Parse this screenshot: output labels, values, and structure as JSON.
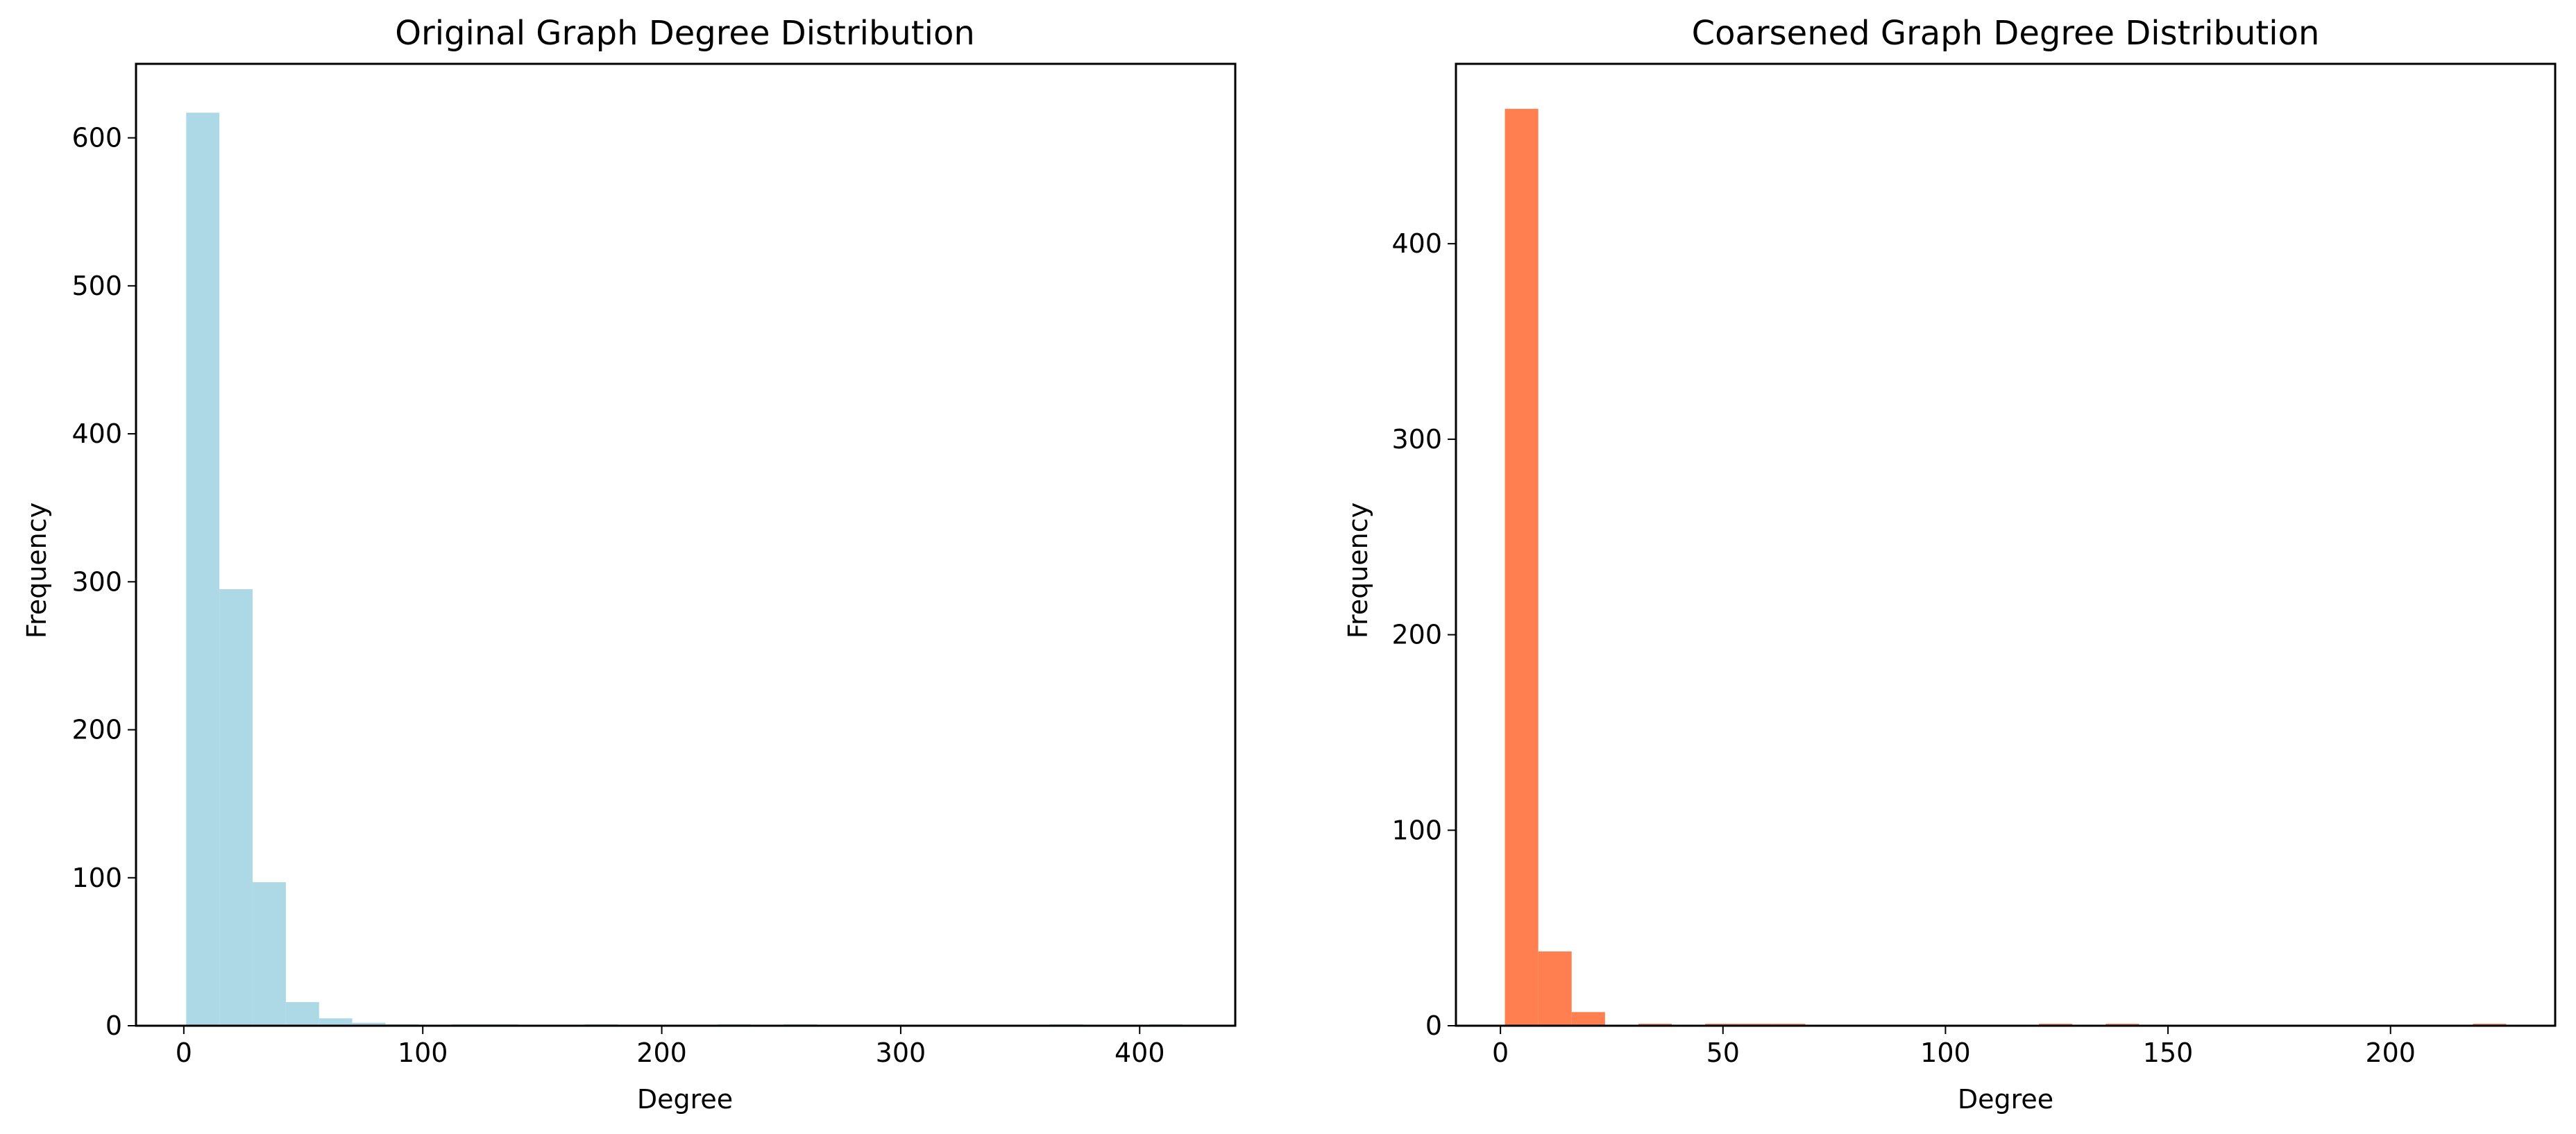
{
  "chart_data": [
    {
      "type": "bar",
      "title": "Original Graph Degree Distribution",
      "xlabel": "Degree",
      "ylabel": "Frequency",
      "color": "#add8e6",
      "xlim": [
        -20,
        440
      ],
      "ylim": [
        0,
        650
      ],
      "xticks": [
        0,
        100,
        200,
        300,
        400
      ],
      "yticks": [
        0,
        100,
        200,
        300,
        400,
        500,
        600
      ],
      "xtick_labels": [
        "0",
        "100",
        "200",
        "300",
        "400"
      ],
      "ytick_labels": [
        "0",
        "100",
        "200",
        "300",
        "400",
        "500",
        "600"
      ],
      "bin_edges": [
        1,
        14.9,
        28.8,
        42.7,
        56.6,
        70.5,
        84.4,
        98.3,
        112.2,
        126.1,
        140,
        153.9,
        167.8,
        181.7,
        195.6,
        209.5,
        223.4,
        237.3,
        251.2,
        265.1,
        279,
        292.9,
        306.8,
        320.7,
        334.6,
        348.5,
        362.4,
        376.3,
        390.2,
        404.1,
        418
      ],
      "values": [
        617,
        295,
        97,
        16,
        5,
        2,
        1,
        0,
        1,
        1,
        0,
        0,
        1,
        0,
        0,
        0,
        1,
        0,
        1,
        0,
        0,
        0,
        0,
        0,
        0,
        0,
        1,
        0,
        0,
        1
      ]
    },
    {
      "type": "bar",
      "title": "Coarsened Graph Degree Distribution",
      "xlabel": "Degree",
      "ylabel": "Frequency",
      "color": "#ff7f50",
      "xlim": [
        -10,
        237
      ],
      "ylim": [
        0,
        492
      ],
      "xticks": [
        0,
        50,
        100,
        150,
        200
      ],
      "yticks": [
        0,
        100,
        200,
        300,
        400
      ],
      "xtick_labels": [
        "0",
        "50",
        "100",
        "150",
        "200"
      ],
      "ytick_labels": [
        "0",
        "100",
        "200",
        "300",
        "400"
      ],
      "bin_edges": [
        1,
        8.5,
        16,
        23.5,
        31,
        38.5,
        46,
        53.5,
        61,
        68.5,
        76,
        83.5,
        91,
        98.5,
        106,
        113.5,
        121,
        128.5,
        136,
        143.5,
        151,
        158.5,
        166,
        173.5,
        181,
        188.5,
        196,
        203.5,
        211,
        218.5,
        226
      ],
      "values": [
        469,
        38,
        7,
        0,
        1,
        0,
        1,
        1,
        1,
        0,
        0,
        0,
        0,
        0,
        0,
        0,
        1,
        0,
        1,
        0,
        0,
        0,
        0,
        0,
        0,
        0,
        0,
        0,
        0,
        1
      ]
    }
  ]
}
